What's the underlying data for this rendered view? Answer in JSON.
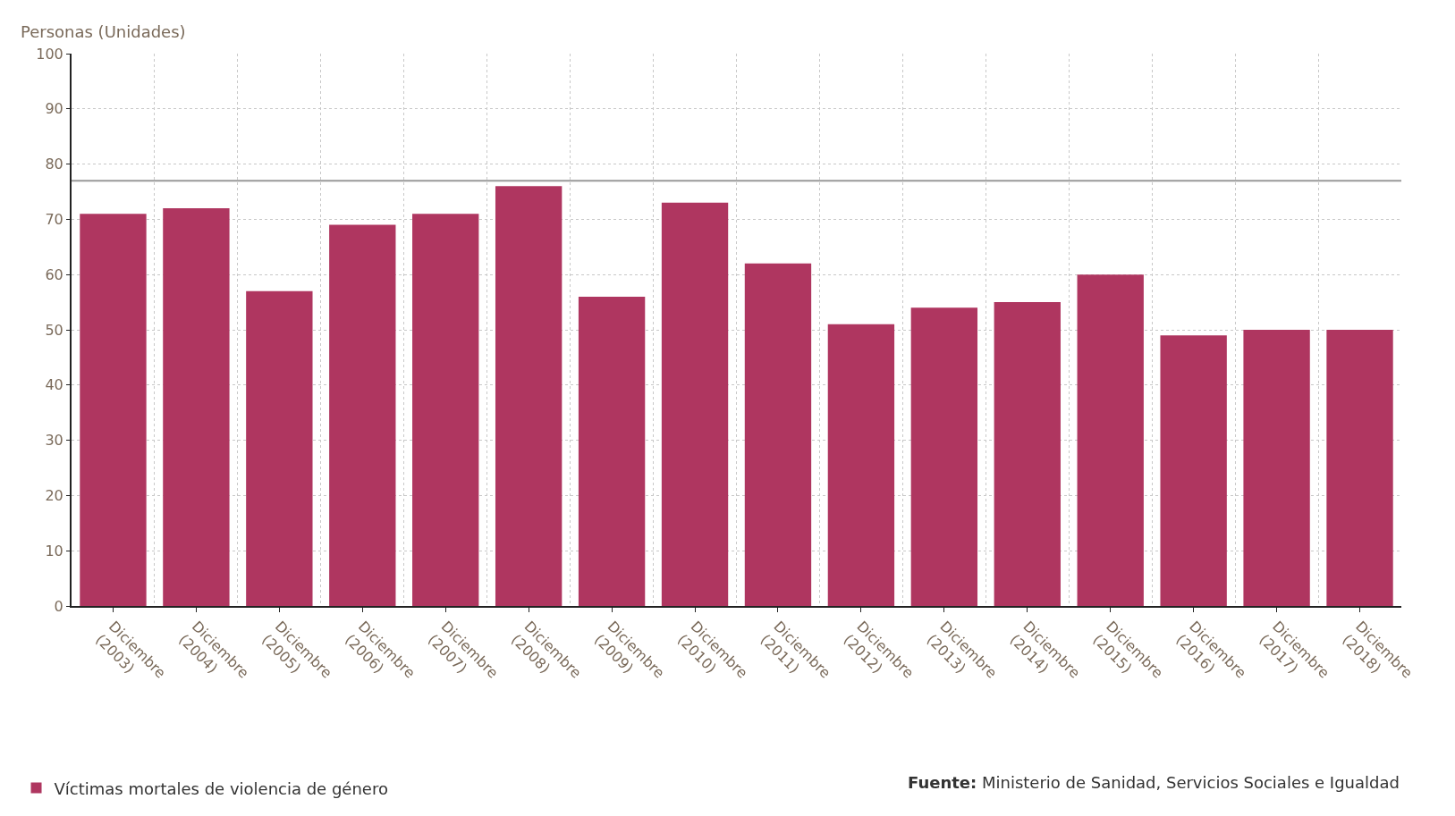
{
  "chart_data": {
    "type": "bar",
    "ylabel": "Personas (Unidades)",
    "categories": [
      "Diciembre (2003)",
      "Diciembre (2004)",
      "Diciembre (2005)",
      "Diciembre (2006)",
      "Diciembre (2007)",
      "Diciembre (2008)",
      "Diciembre (2009)",
      "Diciembre (2010)",
      "Diciembre (2011)",
      "Diciembre (2012)",
      "Diciembre (2013)",
      "Diciembre (2014)",
      "Diciembre (2015)",
      "Diciembre (2016)",
      "Diciembre (2017)",
      "Diciembre (2018)"
    ],
    "series": [
      {
        "name": "Víctimas mortales de violencia de género",
        "color": "#af3660",
        "values": [
          71,
          72,
          57,
          69,
          71,
          76,
          56,
          73,
          62,
          51,
          54,
          55,
          60,
          49,
          50,
          50
        ]
      }
    ],
    "ylim": [
      0,
      100
    ],
    "yticks": [
      0,
      10,
      20,
      30,
      40,
      50,
      60,
      70,
      80,
      90,
      100
    ],
    "ref_lines": [
      {
        "axis": "y",
        "value": 77,
        "color": "#999999"
      }
    ],
    "grid": true,
    "legend": "bottom left",
    "annotations": [
      "**Fuente:** Ministerio de Sanidad, Servicios Sociales e Igualdad"
    ]
  }
}
